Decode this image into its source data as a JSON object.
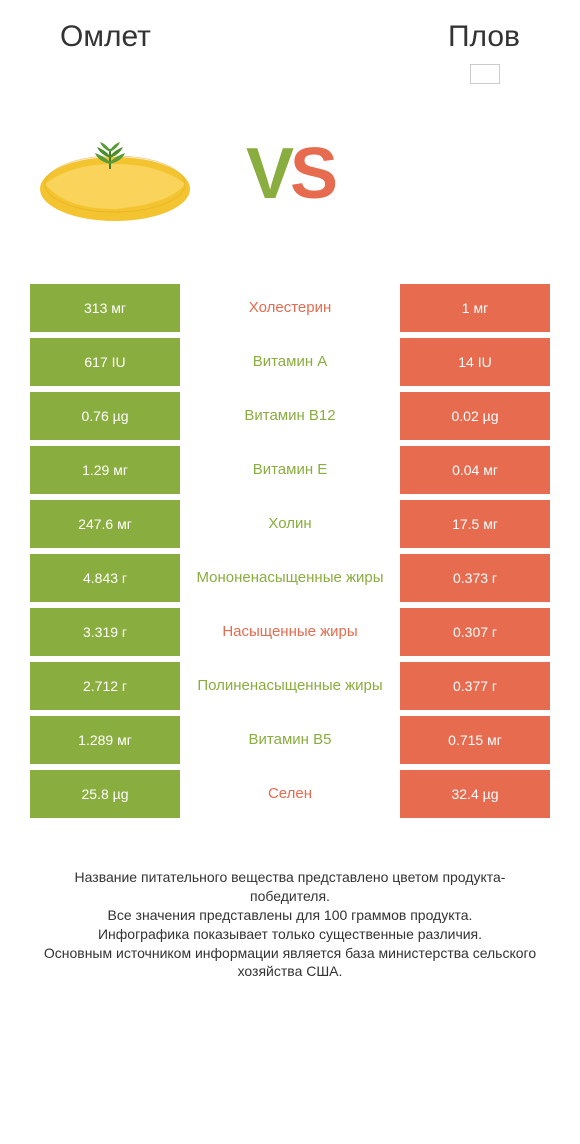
{
  "header": {
    "left_title": "Омлет",
    "right_title": "Плов"
  },
  "vs": {
    "v": "V",
    "s": "S"
  },
  "colors": {
    "green": "#8aad3f",
    "red": "#e66b4f",
    "omelette_fill": "#f4c430",
    "omelette_shadow": "#e0a820",
    "parsley": "#4a7c2a"
  },
  "rows": [
    {
      "left": "313 мг",
      "label": "Холестерин",
      "right": "1 мг",
      "winner": "red"
    },
    {
      "left": "617 IU",
      "label": "Витамин A",
      "right": "14 IU",
      "winner": "green"
    },
    {
      "left": "0.76 µg",
      "label": "Витамин B12",
      "right": "0.02 µg",
      "winner": "green"
    },
    {
      "left": "1.29 мг",
      "label": "Витамин E",
      "right": "0.04 мг",
      "winner": "green"
    },
    {
      "left": "247.6 мг",
      "label": "Холин",
      "right": "17.5 мг",
      "winner": "green"
    },
    {
      "left": "4.843 г",
      "label": "Мононенасыщенные жиры",
      "right": "0.373 г",
      "winner": "green"
    },
    {
      "left": "3.319 г",
      "label": "Насыщенные жиры",
      "right": "0.307 г",
      "winner": "red"
    },
    {
      "left": "2.712 г",
      "label": "Полиненасыщенные жиры",
      "right": "0.377 г",
      "winner": "green"
    },
    {
      "left": "1.289 мг",
      "label": "Витамин B5",
      "right": "0.715 мг",
      "winner": "green"
    },
    {
      "left": "25.8 µg",
      "label": "Селен",
      "right": "32.4 µg",
      "winner": "red"
    }
  ],
  "footnote": {
    "line1": "Название питательного вещества представлено цветом продукта-победителя.",
    "line2": "Все значения представлены для 100 граммов продукта.",
    "line3": "Инфографика показывает только существенные различия.",
    "line4": "Основным источником информации является база министерства сельского хозяйства США."
  }
}
